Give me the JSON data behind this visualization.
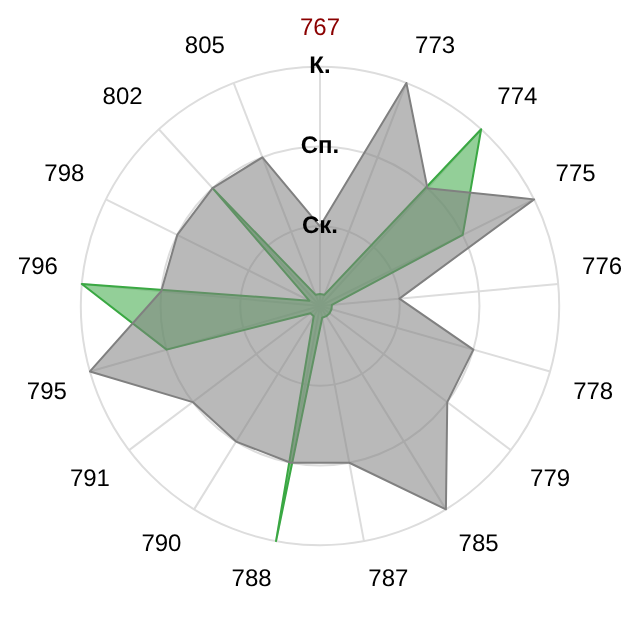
{
  "chart_data": {
    "type": "radar",
    "categories": [
      "767",
      "773",
      "774",
      "775",
      "776",
      "778",
      "779",
      "785",
      "787",
      "788",
      "790",
      "791",
      "795",
      "796",
      "798",
      "802",
      "805"
    ],
    "series": [
      {
        "color": "#808080",
        "values": [
          1,
          3,
          2,
          3,
          1,
          2,
          2,
          3,
          2,
          2,
          2,
          2,
          3,
          2,
          2,
          2,
          2
        ]
      },
      {
        "color": "#3aa843",
        "values": [
          0.15,
          0.15,
          3,
          2,
          0.15,
          0.15,
          0.15,
          0.15,
          0.15,
          3,
          0.15,
          0.15,
          2,
          3,
          0.15,
          2,
          0.15
        ]
      }
    ],
    "ylim": [
      0,
      3
    ],
    "yticks": [
      {
        "value": 1,
        "label": "Ск."
      },
      {
        "value": 2,
        "label": "Сп."
      },
      {
        "value": 3,
        "label": "К."
      }
    ],
    "grid": true,
    "legend": false,
    "marker": "none"
  }
}
